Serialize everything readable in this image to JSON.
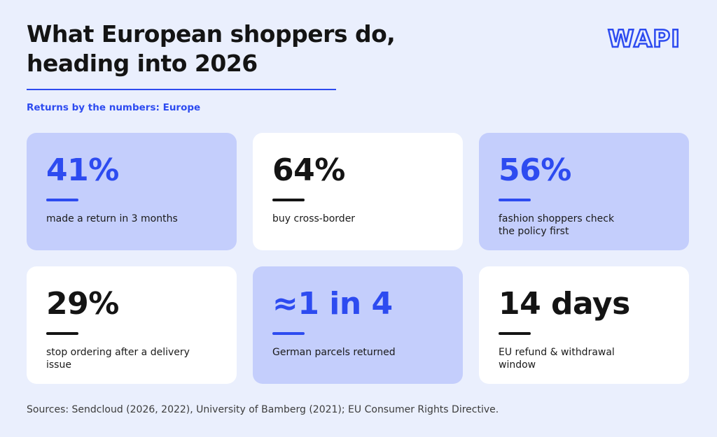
{
  "header": {
    "title_lines": [
      "What European shoppers do,",
      "heading into 2026"
    ],
    "logo": "WAPI",
    "subtitle": "Returns by the numbers: Europe"
  },
  "cards": [
    {
      "stat": "41%",
      "lines": [
        "made a return in 3 months"
      ],
      "style": "blue"
    },
    {
      "stat": "64%",
      "lines": [
        "buy cross-border"
      ],
      "style": "white"
    },
    {
      "stat": "56%",
      "lines": [
        "fashion shoppers check",
        "the policy first"
      ],
      "style": "blue"
    },
    {
      "stat": "29%",
      "lines": [
        "stop ordering after a delivery",
        "issue"
      ],
      "style": "white"
    },
    {
      "stat": "≈1 in 4",
      "lines": [
        "German parcels returned"
      ],
      "style": "blue"
    },
    {
      "stat": "14 days",
      "lines": [
        "EU refund & withdrawal",
        "window"
      ],
      "style": "white"
    }
  ],
  "sources": "Sources: Sendcloud (2026, 2022), University of Bamberg (2021); EU Consumer Rights Directive."
}
